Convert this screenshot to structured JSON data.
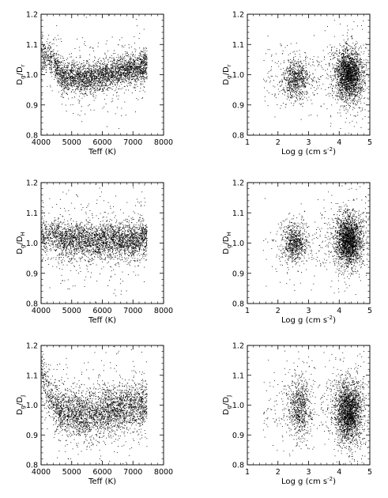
{
  "chart_data": [
    {
      "type": "scatter",
      "panel": "top-left",
      "xlabel": "Teff (K)",
      "ylabel_main": "D",
      "ylabel_sub1": "g",
      "ylabel_sub2": "r",
      "xlim": [
        4000,
        8000
      ],
      "ylim": [
        0.8,
        1.2
      ],
      "xticks": [
        "4000",
        "5000",
        "6000",
        "7000",
        "8000"
      ],
      "yticks": [
        "0.8",
        "0.9",
        "1.0",
        "1.1",
        "1.2"
      ],
      "color": "#000000",
      "density_profile": [
        [
          4050,
          1.06
        ],
        [
          4200,
          1.07
        ],
        [
          4400,
          1.04
        ],
        [
          4700,
          0.99
        ],
        [
          5000,
          0.99
        ],
        [
          5500,
          0.99
        ],
        [
          6000,
          1.0
        ],
        [
          6500,
          1.01
        ],
        [
          7000,
          1.02
        ],
        [
          7400,
          1.03
        ]
      ],
      "spread": 0.025,
      "n_points": 3200
    },
    {
      "type": "scatter",
      "panel": "top-right",
      "xlabel": "Log g (cm s-2)",
      "ylabel_main": "D",
      "ylabel_sub1": "g",
      "ylabel_sub2": "r",
      "xlim": [
        1,
        5
      ],
      "ylim": [
        0.8,
        1.2
      ],
      "xticks": [
        "1",
        "2",
        "3",
        "4",
        "5"
      ],
      "yticks": [
        "0.8",
        "0.9",
        "1.0",
        "1.1",
        "1.2"
      ],
      "color": "#000000",
      "clusters": [
        {
          "x": 2.6,
          "y": 0.985,
          "sx": 0.22,
          "sy": 0.03,
          "n": 700
        },
        {
          "x": 4.3,
          "y": 1.0,
          "sx": 0.22,
          "sy": 0.04,
          "n": 2200
        }
      ],
      "n_sparse": 250
    },
    {
      "type": "scatter",
      "panel": "middle-left",
      "xlabel": "Teff (K)",
      "ylabel_main": "D",
      "ylabel_sub1": "g",
      "ylabel_sub2": "H",
      "xlim": [
        4000,
        8000
      ],
      "ylim": [
        0.8,
        1.2
      ],
      "xticks": [
        "4000",
        "5000",
        "6000",
        "7000",
        "8000"
      ],
      "yticks": [
        "0.8",
        "0.9",
        "1.0",
        "1.1",
        "1.2"
      ],
      "color": "#000000",
      "density_profile": [
        [
          4050,
          1.02
        ],
        [
          4400,
          1.03
        ],
        [
          4700,
          1.01
        ],
        [
          5000,
          1.01
        ],
        [
          5500,
          1.01
        ],
        [
          6000,
          1.01
        ],
        [
          6500,
          1.01
        ],
        [
          7000,
          1.01
        ],
        [
          7400,
          1.02
        ]
      ],
      "spread": 0.03,
      "n_points": 3200
    },
    {
      "type": "scatter",
      "panel": "middle-right",
      "xlabel": "Log g (cm s-2)",
      "ylabel_main": "D",
      "ylabel_sub1": "g",
      "ylabel_sub2": "H",
      "xlim": [
        1,
        5
      ],
      "ylim": [
        0.8,
        1.2
      ],
      "xticks": [
        "1",
        "2",
        "3",
        "4",
        "5"
      ],
      "yticks": [
        "0.8",
        "0.9",
        "1.0",
        "1.1",
        "1.2"
      ],
      "color": "#000000",
      "clusters": [
        {
          "x": 2.55,
          "y": 1.0,
          "sx": 0.2,
          "sy": 0.03,
          "n": 700
        },
        {
          "x": 4.3,
          "y": 1.01,
          "sx": 0.22,
          "sy": 0.04,
          "n": 2200
        }
      ],
      "n_sparse": 250
    },
    {
      "type": "scatter",
      "panel": "bottom-left",
      "xlabel": "Teff (K)",
      "ylabel_main": "D",
      "ylabel_sub1": "g",
      "ylabel_sub2": "J",
      "xlim": [
        4000,
        8000
      ],
      "ylim": [
        0.8,
        1.2
      ],
      "xticks": [
        "4000",
        "5000",
        "6000",
        "7000",
        "8000"
      ],
      "yticks": [
        "0.8",
        "0.9",
        "1.0",
        "1.1",
        "1.2"
      ],
      "color": "#000000",
      "density_profile": [
        [
          4050,
          1.1
        ],
        [
          4300,
          1.02
        ],
        [
          4600,
          0.98
        ],
        [
          5000,
          0.97
        ],
        [
          5500,
          0.97
        ],
        [
          6000,
          0.98
        ],
        [
          6500,
          0.99
        ],
        [
          7000,
          1.0
        ],
        [
          7400,
          1.0
        ]
      ],
      "spread": 0.04,
      "n_points": 3200
    },
    {
      "type": "scatter",
      "panel": "bottom-right",
      "xlabel": "Log g (cm s-2)",
      "ylabel_main": "D",
      "ylabel_sub1": "g",
      "ylabel_sub2": "J",
      "xlim": [
        1,
        5
      ],
      "ylim": [
        0.8,
        1.2
      ],
      "xticks": [
        "1",
        "2",
        "3",
        "4",
        "5"
      ],
      "yticks": [
        "0.8",
        "0.9",
        "1.0",
        "1.1",
        "1.2"
      ],
      "color": "#000000",
      "clusters": [
        {
          "x": 2.7,
          "y": 0.99,
          "sx": 0.18,
          "sy": 0.05,
          "n": 700
        },
        {
          "x": 4.3,
          "y": 0.98,
          "sx": 0.22,
          "sy": 0.05,
          "n": 2200
        }
      ],
      "n_sparse": 250
    }
  ]
}
